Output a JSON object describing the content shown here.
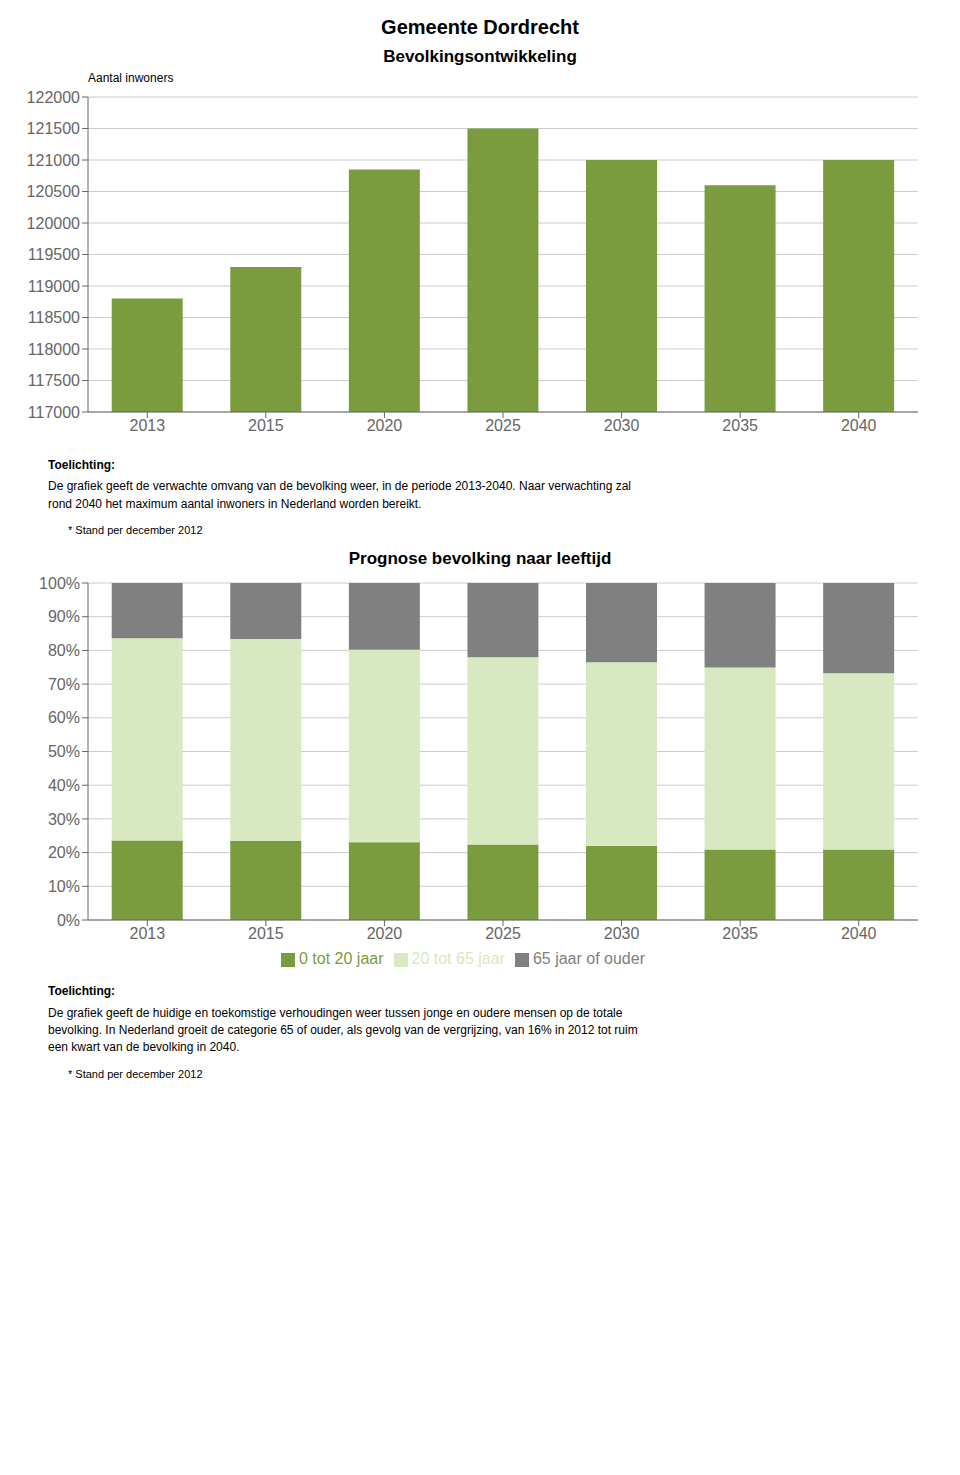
{
  "title": "Gemeente Dordrecht",
  "chart_data": [
    {
      "type": "bar",
      "title": "Bevolkingsontwikkeling",
      "ylabel": "Aantal inwoners",
      "categories": [
        "2013",
        "2015",
        "2020",
        "2025",
        "2030",
        "2035",
        "2040"
      ],
      "values": [
        118800,
        119300,
        120850,
        121500,
        121000,
        120600,
        121000
      ],
      "color": "#7B9C3E",
      "ylim": [
        117000,
        122000
      ],
      "yticks": [
        117000,
        117500,
        118000,
        118500,
        119000,
        119500,
        120000,
        120500,
        121000,
        121500,
        122000
      ],
      "grid": true,
      "annotations": [
        "Toelichting:",
        "De grafiek geeft de verwachte omvang van de bevolking weer, in de periode 2013-2040. Naar verwachting zal\nrond 2040 het maximum aantal inwoners in Nederland worden bereikt.",
        "* Stand per december 2012"
      ]
    },
    {
      "type": "bar",
      "title": "Prognose bevolking naar leeftijd",
      "stacked": true,
      "categories": [
        "2013",
        "2015",
        "2020",
        "2025",
        "2030",
        "2035",
        "2040"
      ],
      "series": [
        {
          "name": "0 tot 20 jaar",
          "color": "#7B9C3E",
          "values": [
            0.236,
            0.235,
            0.231,
            0.224,
            0.22,
            0.209,
            0.209
          ]
        },
        {
          "name": "20 tot 65 jaar",
          "color": "#D8E8C0",
          "values": [
            0.6,
            0.599,
            0.571,
            0.556,
            0.545,
            0.54,
            0.523
          ]
        },
        {
          "name": "65 jaar of ouder",
          "color": "#808080",
          "values": [
            0.164,
            0.166,
            0.198,
            0.22,
            0.235,
            0.251,
            0.268
          ]
        }
      ],
      "ylim": [
        0,
        1.0
      ],
      "yticks": [
        {
          "value": 0,
          "label": "0%"
        },
        {
          "value": 0.1,
          "label": "10%"
        },
        {
          "value": 0.2,
          "label": "20%"
        },
        {
          "value": 0.3,
          "label": "30%"
        },
        {
          "value": 0.4,
          "label": "40%"
        },
        {
          "value": 0.5,
          "label": "50%"
        },
        {
          "value": 0.6,
          "label": "60%"
        },
        {
          "value": 0.7,
          "label": "70%"
        },
        {
          "value": 0.8,
          "label": "80%"
        },
        {
          "value": 0.9,
          "label": "90%"
        },
        {
          "value": 1.0,
          "label": "100%"
        }
      ],
      "grid": true,
      "legend": "bottom",
      "annotations": [
        "Toelichting:",
        "De grafiek geeft de huidige en toekomstige verhoudingen weer tussen jonge en oudere mensen op de totale\nbevolking. In Nederland groeit de categorie 65 of ouder, als gevolg van de vergrijzing, van 16% in 2012 tot ruim\neen kwart van de bevolking in 2040.",
        "* Stand per december 2012"
      ]
    }
  ]
}
